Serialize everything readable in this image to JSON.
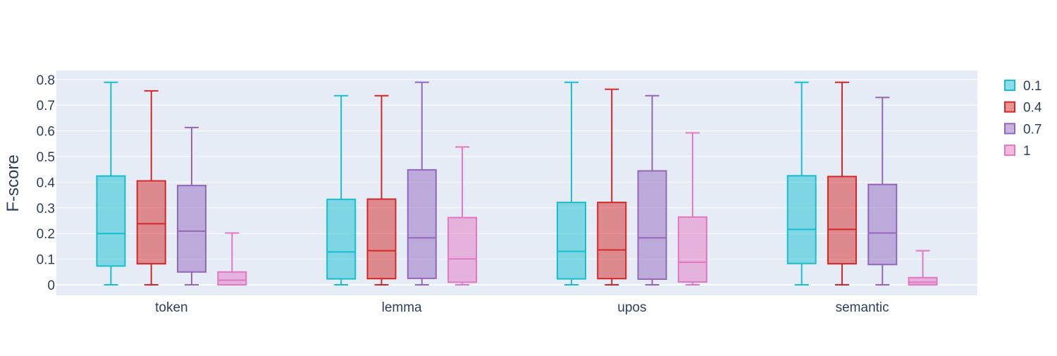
{
  "chart_data": {
    "type": "box",
    "title": "",
    "xlabel": "",
    "ylabel": "F-score",
    "ylim": [
      -0.04,
      0.83
    ],
    "yticks": [
      0,
      0.1,
      0.2,
      0.3,
      0.4,
      0.5,
      0.6,
      0.7,
      0.8
    ],
    "ytick_labels": [
      "0",
      "0.1",
      "0.2",
      "0.3",
      "0.4",
      "0.5",
      "0.6",
      "0.7",
      "0.8"
    ],
    "categories": [
      "token",
      "lemma",
      "upos",
      "semantic"
    ],
    "grid": true,
    "legend_position": "top-right",
    "plot_background": "#e5ecf6",
    "series": [
      {
        "name": "0.1",
        "color": "#17becf",
        "boxes": [
          {
            "min": 0.0,
            "q1": 0.073,
            "median": 0.2,
            "q3": 0.424,
            "max": 0.789
          },
          {
            "min": 0.0,
            "q1": 0.023,
            "median": 0.128,
            "q3": 0.333,
            "max": 0.737
          },
          {
            "min": 0.0,
            "q1": 0.023,
            "median": 0.13,
            "q3": 0.321,
            "max": 0.789
          },
          {
            "min": 0.0,
            "q1": 0.083,
            "median": 0.216,
            "q3": 0.425,
            "max": 0.789
          }
        ]
      },
      {
        "name": "0.4",
        "color": "#d62728",
        "boxes": [
          {
            "min": 0.0,
            "q1": 0.082,
            "median": 0.238,
            "q3": 0.405,
            "max": 0.756
          },
          {
            "min": 0.0,
            "q1": 0.024,
            "median": 0.133,
            "q3": 0.334,
            "max": 0.737
          },
          {
            "min": 0.0,
            "q1": 0.024,
            "median": 0.136,
            "q3": 0.321,
            "max": 0.762
          },
          {
            "min": 0.0,
            "q1": 0.082,
            "median": 0.216,
            "q3": 0.422,
            "max": 0.789
          }
        ]
      },
      {
        "name": "0.7",
        "color": "#9467bd",
        "boxes": [
          {
            "min": 0.0,
            "q1": 0.05,
            "median": 0.209,
            "q3": 0.387,
            "max": 0.613
          },
          {
            "min": 0.0,
            "q1": 0.025,
            "median": 0.183,
            "q3": 0.448,
            "max": 0.789
          },
          {
            "min": 0.0,
            "q1": 0.022,
            "median": 0.183,
            "q3": 0.444,
            "max": 0.737
          },
          {
            "min": 0.0,
            "q1": 0.079,
            "median": 0.202,
            "q3": 0.391,
            "max": 0.73
          }
        ]
      },
      {
        "name": "1",
        "color": "#e377c2",
        "boxes": [
          {
            "min": 0.0,
            "q1": 0.0,
            "median": 0.018,
            "q3": 0.05,
            "max": 0.202
          },
          {
            "min": 0.0,
            "q1": 0.01,
            "median": 0.101,
            "q3": 0.262,
            "max": 0.537
          },
          {
            "min": 0.0,
            "q1": 0.011,
            "median": 0.088,
            "q3": 0.264,
            "max": 0.592
          },
          {
            "min": 0.0,
            "q1": 0.0,
            "median": 0.01,
            "q3": 0.028,
            "max": 0.133
          }
        ]
      }
    ]
  }
}
